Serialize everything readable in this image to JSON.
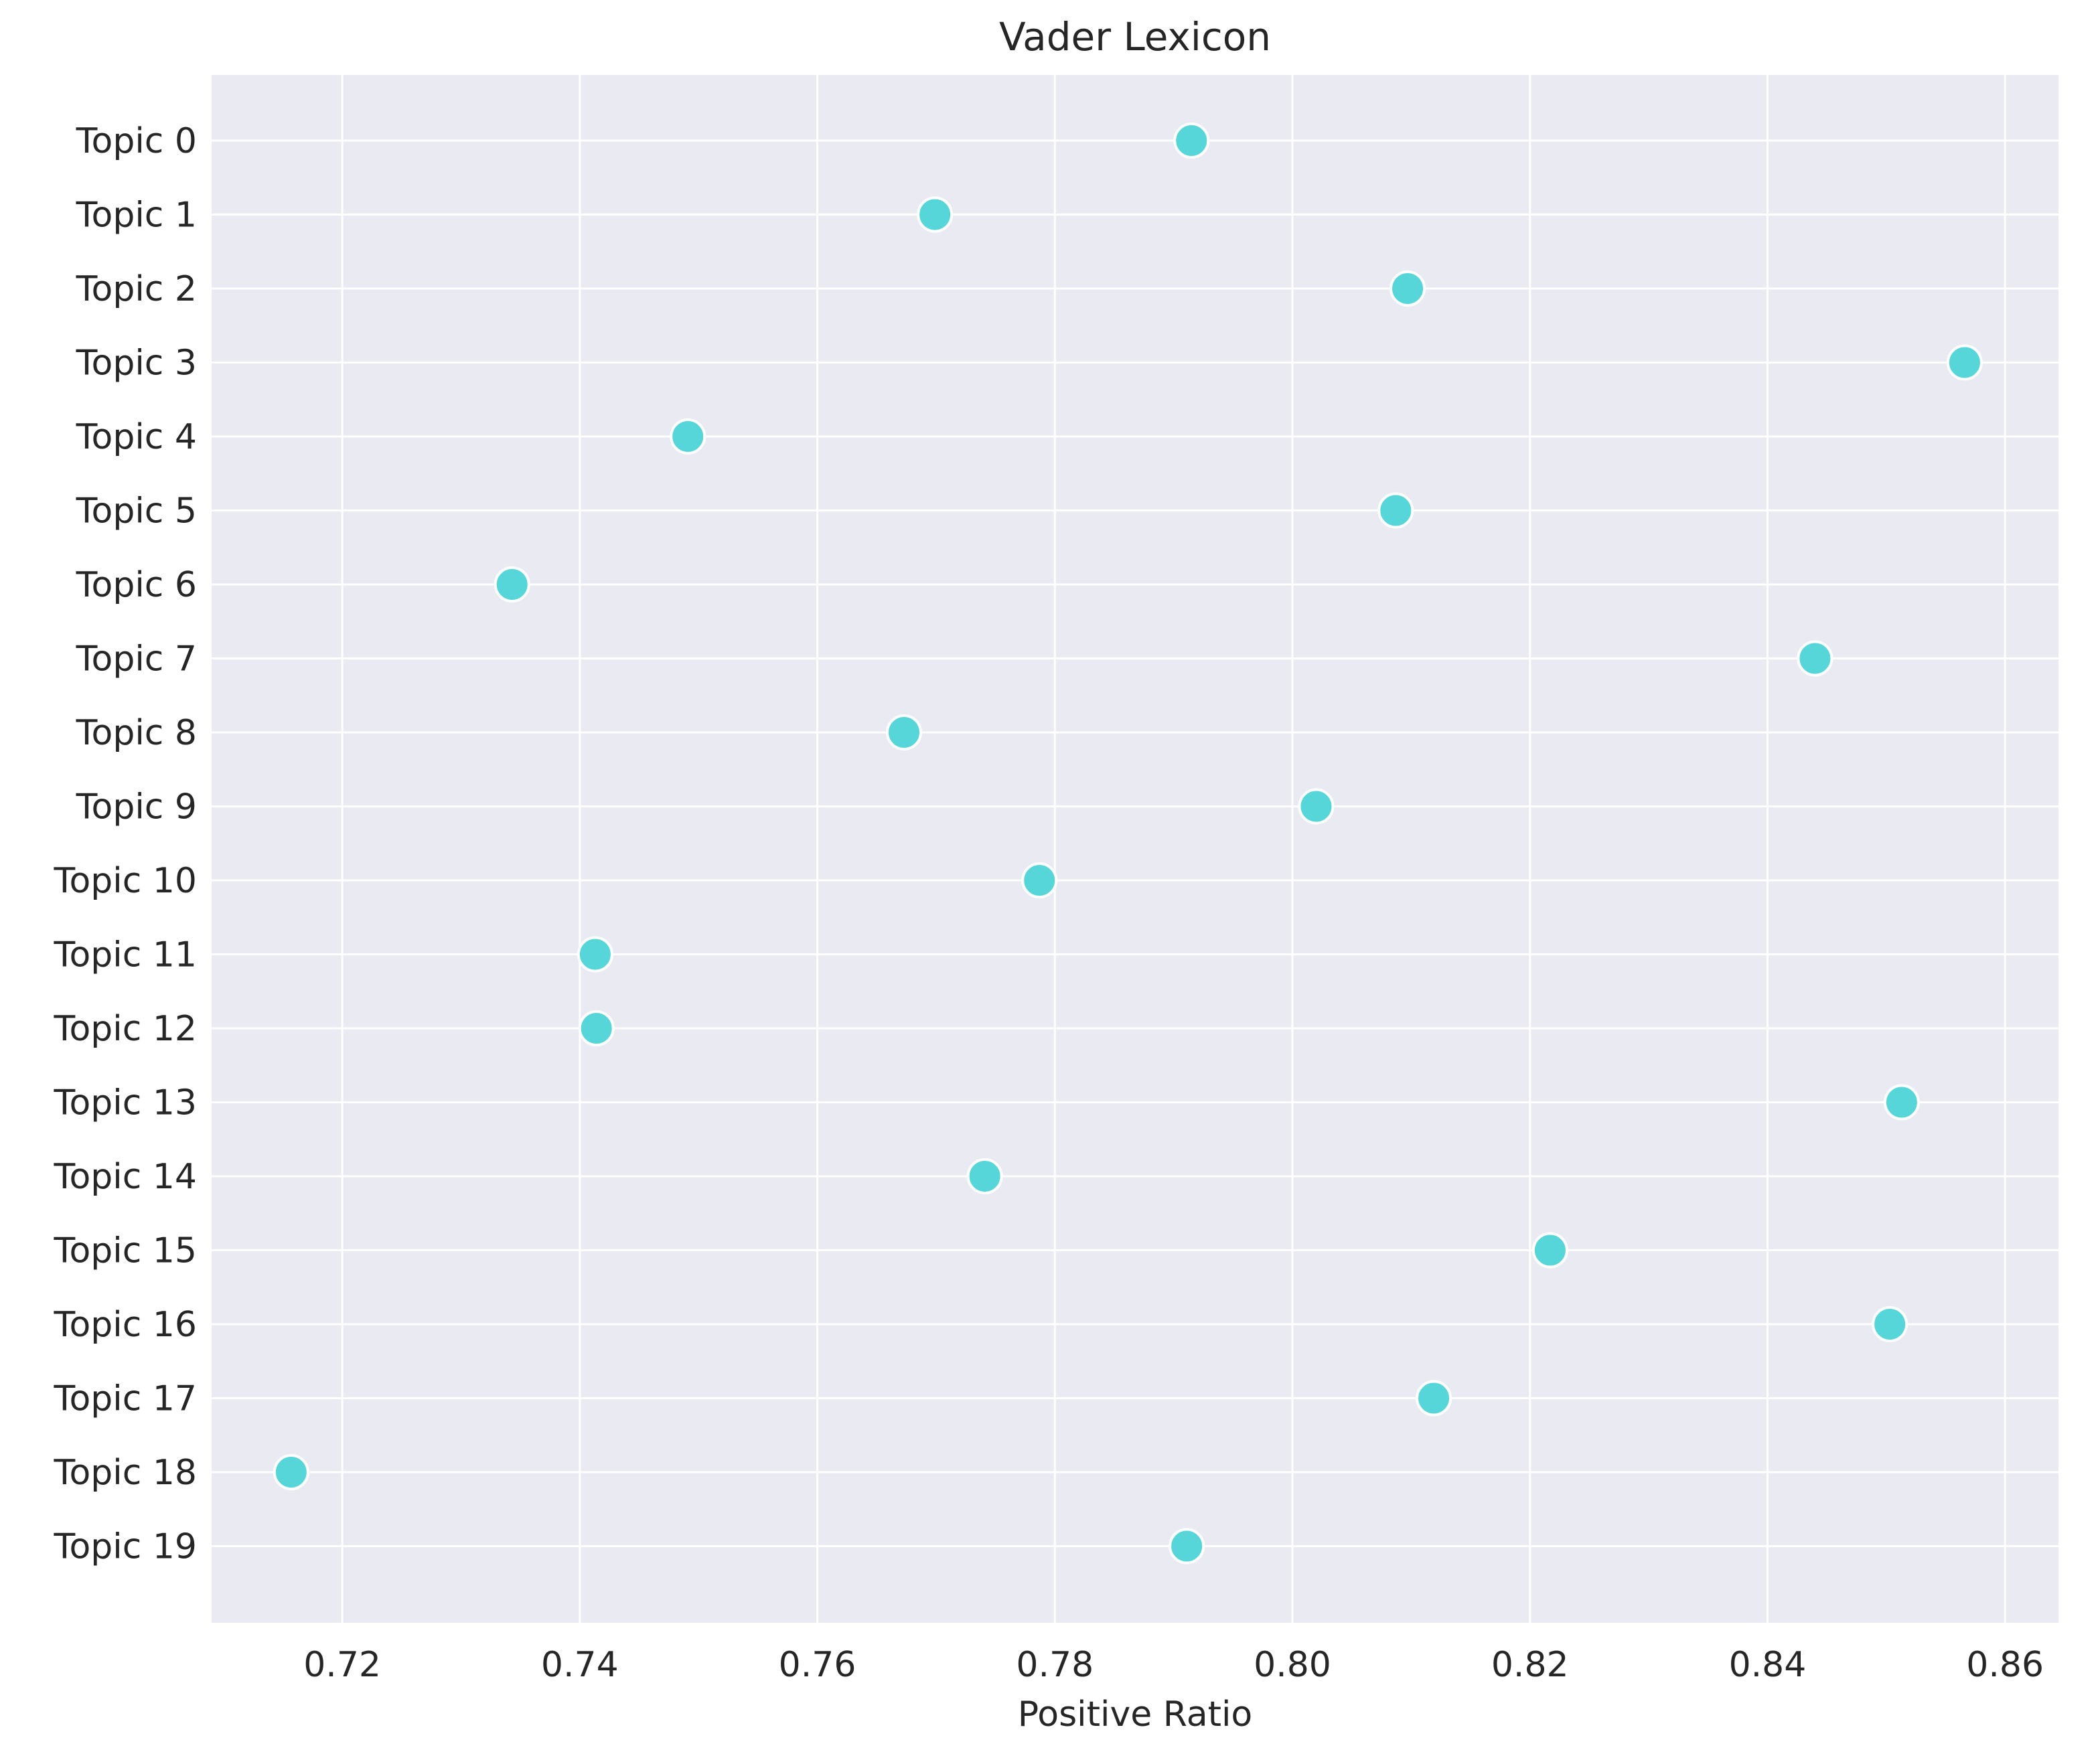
{
  "chart_data": {
    "type": "scatter",
    "title": "Vader Lexicon",
    "xlabel": "Positive Ratio",
    "ylabel": "",
    "xlim": [
      0.709,
      0.8645
    ],
    "x_ticks": [
      "0.72",
      "0.74",
      "0.76",
      "0.78",
      "0.80",
      "0.82",
      "0.84",
      "0.86"
    ],
    "x_tick_values": [
      0.72,
      0.74,
      0.76,
      0.78,
      0.8,
      0.82,
      0.84,
      0.86
    ],
    "categories": [
      "Topic 0",
      "Topic 1",
      "Topic 2",
      "Topic 3",
      "Topic 4",
      "Topic 5",
      "Topic 6",
      "Topic 7",
      "Topic 8",
      "Topic 9",
      "Topic 10",
      "Topic 11",
      "Topic 12",
      "Topic 13",
      "Topic 14",
      "Topic 15",
      "Topic 16",
      "Topic 17",
      "Topic 18",
      "Topic 19"
    ],
    "values": [
      0.7915,
      0.7699,
      0.8097,
      0.8566,
      0.7491,
      0.8087,
      0.7343,
      0.844,
      0.7673,
      0.802,
      0.7787,
      0.7413,
      0.7414,
      0.8513,
      0.7741,
      0.8217,
      0.8503,
      0.8119,
      0.7157,
      0.7911
    ],
    "grid": true,
    "background_color": "#eaeaf2",
    "grid_color": "#ffffff",
    "marker_color": "#56d6d8",
    "marker_edge_color": "#ffffff"
  }
}
